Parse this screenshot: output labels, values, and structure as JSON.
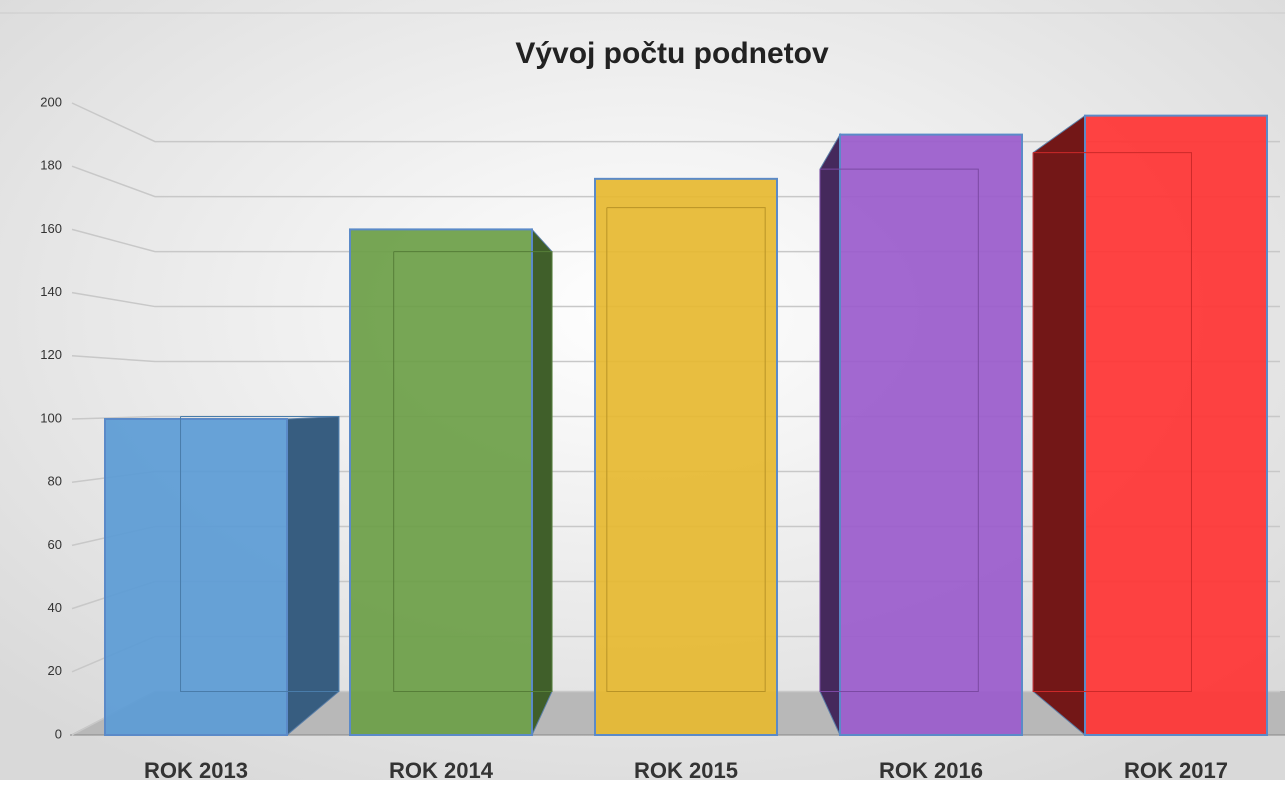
{
  "chart_data": {
    "type": "bar3d",
    "title": "Vývoj počtu podnetov",
    "categories": [
      "ROK 2013",
      "ROK 2014",
      "ROK 2015",
      "ROK 2016",
      "ROK 2017"
    ],
    "values": [
      100,
      160,
      176,
      190,
      196
    ],
    "colors": [
      "#5b9bd5",
      "#6b9e46",
      "#e6b830",
      "#9a5bcc",
      "#ff3333"
    ],
    "ylim": [
      0,
      200
    ],
    "yticks": [
      0,
      20,
      40,
      60,
      80,
      100,
      120,
      140,
      160,
      180,
      200
    ],
    "grid": true
  }
}
